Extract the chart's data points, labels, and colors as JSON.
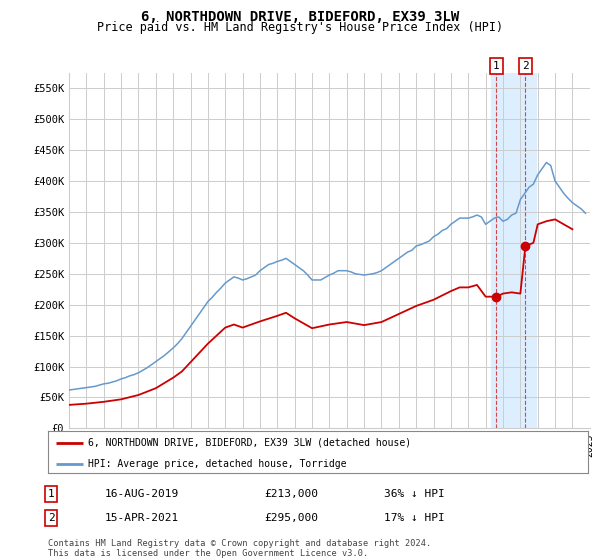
{
  "title": "6, NORTHDOWN DRIVE, BIDEFORD, EX39 3LW",
  "subtitle": "Price paid vs. HM Land Registry's House Price Index (HPI)",
  "legend_label_red": "6, NORTHDOWN DRIVE, BIDEFORD, EX39 3LW (detached house)",
  "legend_label_blue": "HPI: Average price, detached house, Torridge",
  "annotation1": {
    "label": "1",
    "date": "16-AUG-2019",
    "price": "£213,000",
    "pct": "36% ↓ HPI"
  },
  "annotation2": {
    "label": "2",
    "date": "15-APR-2021",
    "price": "£295,000",
    "pct": "17% ↓ HPI"
  },
  "footer": "Contains HM Land Registry data © Crown copyright and database right 2024.\nThis data is licensed under the Open Government Licence v3.0.",
  "hpi_color": "#6699cc",
  "price_color": "#cc0000",
  "highlight_color": "#ddeeff",
  "grid_color": "#cccccc",
  "background_color": "#ffffff",
  "ylim": [
    0,
    575000
  ],
  "yticks": [
    0,
    50000,
    100000,
    150000,
    200000,
    250000,
    300000,
    350000,
    400000,
    450000,
    500000,
    550000
  ],
  "ytick_labels": [
    "£0",
    "£50K",
    "£100K",
    "£150K",
    "£200K",
    "£250K",
    "£300K",
    "£350K",
    "£400K",
    "£450K",
    "£500K",
    "£550K"
  ],
  "hpi_years": [
    1995,
    1995.25,
    1995.5,
    1995.75,
    1996,
    1996.25,
    1996.5,
    1996.75,
    1997,
    1997.25,
    1997.5,
    1997.75,
    1998,
    1998.25,
    1998.5,
    1998.75,
    1999,
    1999.25,
    1999.5,
    1999.75,
    2000,
    2000.25,
    2000.5,
    2000.75,
    2001,
    2001.25,
    2001.5,
    2001.75,
    2002,
    2002.25,
    2002.5,
    2002.75,
    2003,
    2003.25,
    2003.5,
    2003.75,
    2004,
    2004.25,
    2004.5,
    2004.75,
    2005,
    2005.25,
    2005.5,
    2005.75,
    2006,
    2006.25,
    2006.5,
    2006.75,
    2007,
    2007.25,
    2007.5,
    2007.75,
    2008,
    2008.25,
    2008.5,
    2008.75,
    2009,
    2009.25,
    2009.5,
    2009.75,
    2010,
    2010.25,
    2010.5,
    2010.75,
    2011,
    2011.25,
    2011.5,
    2011.75,
    2012,
    2012.25,
    2012.5,
    2012.75,
    2013,
    2013.25,
    2013.5,
    2013.75,
    2014,
    2014.25,
    2014.5,
    2014.75,
    2015,
    2015.25,
    2015.5,
    2015.75,
    2016,
    2016.25,
    2016.5,
    2016.75,
    2017,
    2017.25,
    2017.5,
    2017.75,
    2018,
    2018.25,
    2018.5,
    2018.75,
    2019,
    2019.25,
    2019.5,
    2019.75,
    2020,
    2020.25,
    2020.5,
    2020.75,
    2021,
    2021.25,
    2021.5,
    2021.75,
    2022,
    2022.25,
    2022.5,
    2022.75,
    2023,
    2023.25,
    2023.5,
    2023.75,
    2024,
    2024.25,
    2024.5,
    2024.75
  ],
  "hpi_values": [
    62000,
    63000,
    64000,
    65000,
    66000,
    67000,
    68000,
    70000,
    72000,
    73000,
    75000,
    77000,
    80000,
    82000,
    85000,
    87000,
    90000,
    94000,
    98000,
    103000,
    108000,
    113000,
    118000,
    124000,
    130000,
    137000,
    145000,
    155000,
    165000,
    175000,
    185000,
    195000,
    205000,
    212000,
    220000,
    227000,
    235000,
    240000,
    245000,
    243000,
    240000,
    242000,
    245000,
    248000,
    255000,
    260000,
    265000,
    267000,
    270000,
    272000,
    275000,
    270000,
    265000,
    260000,
    255000,
    248000,
    240000,
    240000,
    240000,
    244000,
    248000,
    251000,
    255000,
    255000,
    255000,
    253000,
    250000,
    249000,
    248000,
    249000,
    250000,
    252000,
    255000,
    260000,
    265000,
    270000,
    275000,
    280000,
    285000,
    288000,
    295000,
    297000,
    300000,
    303000,
    310000,
    314000,
    320000,
    323000,
    330000,
    335000,
    340000,
    340000,
    340000,
    342000,
    345000,
    342000,
    330000,
    335000,
    340000,
    342000,
    335000,
    338000,
    345000,
    348000,
    370000,
    380000,
    390000,
    395000,
    410000,
    420000,
    430000,
    425000,
    400000,
    390000,
    380000,
    372000,
    365000,
    360000,
    355000,
    348000
  ],
  "price_years": [
    1995,
    1996,
    1997,
    1998,
    1999,
    2000,
    2001,
    2001.5,
    2002,
    2002.5,
    2003,
    2003.5,
    2004,
    2004.5,
    2005,
    2005.5,
    2006,
    2007,
    2007.5,
    2008,
    2008.5,
    2009,
    2010,
    2011,
    2012,
    2013,
    2014,
    2015,
    2015.5,
    2016,
    2016.5,
    2017,
    2017.5,
    2018,
    2018.5,
    2019,
    2019.625,
    2020,
    2020.5,
    2021,
    2021.29,
    2021.75,
    2022,
    2022.5,
    2023,
    2023.5,
    2024
  ],
  "price_values": [
    38000,
    40000,
    43000,
    47000,
    54000,
    65000,
    82000,
    92000,
    107000,
    122000,
    137000,
    150000,
    163000,
    168000,
    163000,
    168000,
    173000,
    182000,
    187000,
    178000,
    170000,
    162000,
    168000,
    172000,
    167000,
    172000,
    185000,
    198000,
    203000,
    208000,
    215000,
    222000,
    228000,
    228000,
    232000,
    213000,
    213000,
    218000,
    220000,
    218000,
    295000,
    300000,
    330000,
    335000,
    338000,
    330000,
    322000
  ],
  "sale1_x": 2019.625,
  "sale1_y": 213000,
  "sale2_x": 2021.29,
  "sale2_y": 295000,
  "highlight_xmin": 2019.3,
  "highlight_xmax": 2021.9,
  "xmin": 1995,
  "xmax": 2025
}
